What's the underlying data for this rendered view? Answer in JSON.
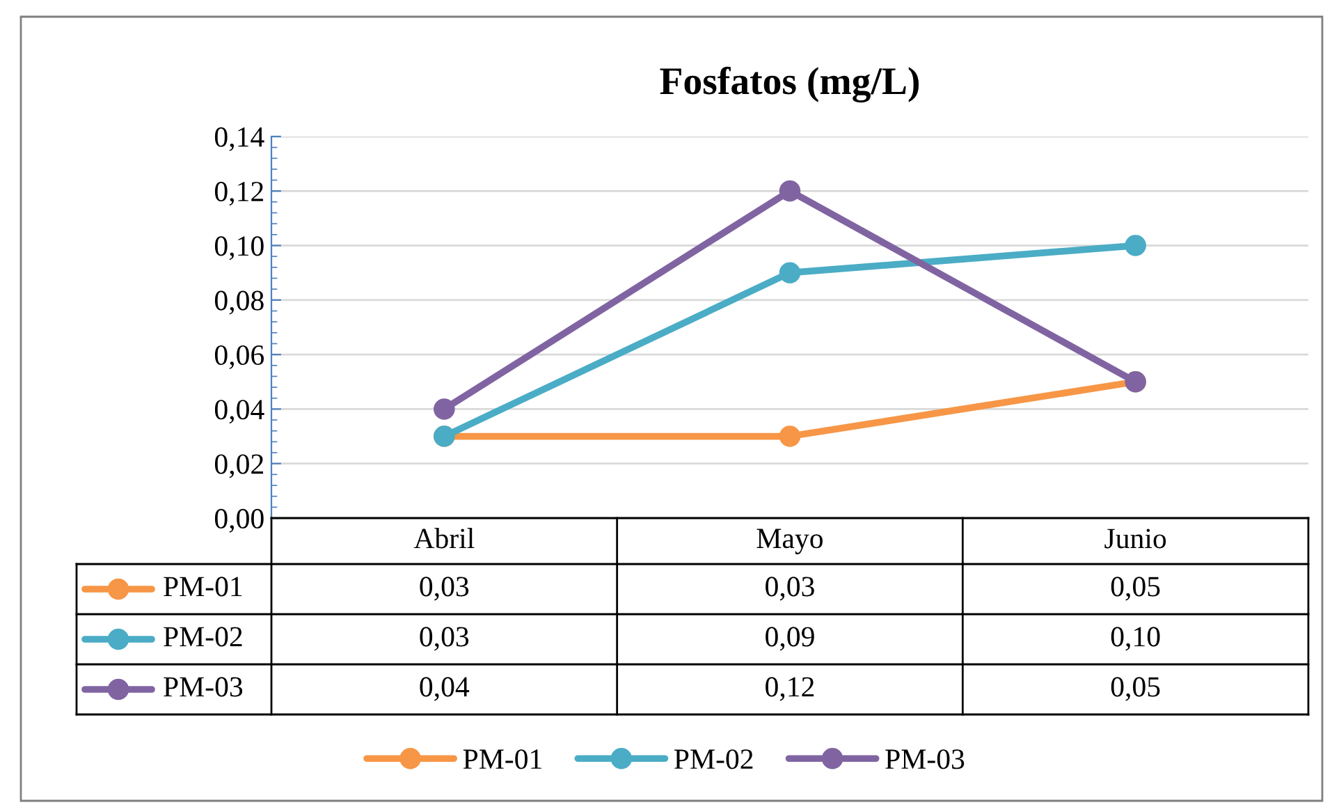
{
  "chart_data": {
    "type": "line",
    "title": "Fosfatos (mg/L)",
    "categories": [
      "Abril",
      "Mayo",
      "Junio"
    ],
    "series": [
      {
        "name": "PM-01",
        "color": "#f79646",
        "values": [
          0.03,
          0.03,
          0.05
        ],
        "value_labels": [
          "0,03",
          "0,03",
          "0,05"
        ]
      },
      {
        "name": "PM-02",
        "color": "#4bacc6",
        "values": [
          0.03,
          0.09,
          0.1
        ],
        "value_labels": [
          "0,03",
          "0,09",
          "0,10"
        ]
      },
      {
        "name": "PM-03",
        "color": "#8064a2",
        "values": [
          0.04,
          0.12,
          0.05
        ],
        "value_labels": [
          "0,04",
          "0,12",
          "0,05"
        ]
      }
    ],
    "ylim": [
      0,
      0.14
    ],
    "yticks": [
      {
        "value": 0,
        "label": "0,00"
      },
      {
        "value": 0.02,
        "label": "0,02"
      },
      {
        "value": 0.04,
        "label": "0,04"
      },
      {
        "value": 0.06,
        "label": "0,06"
      },
      {
        "value": 0.08,
        "label": "0,08"
      },
      {
        "value": 0.1,
        "label": "0,10"
      },
      {
        "value": 0.12,
        "label": "0,12"
      },
      {
        "value": 0.14,
        "label": "0,14"
      }
    ],
    "grid": "y",
    "legend": "bottom",
    "marker": "circle",
    "line_style": "solid"
  }
}
